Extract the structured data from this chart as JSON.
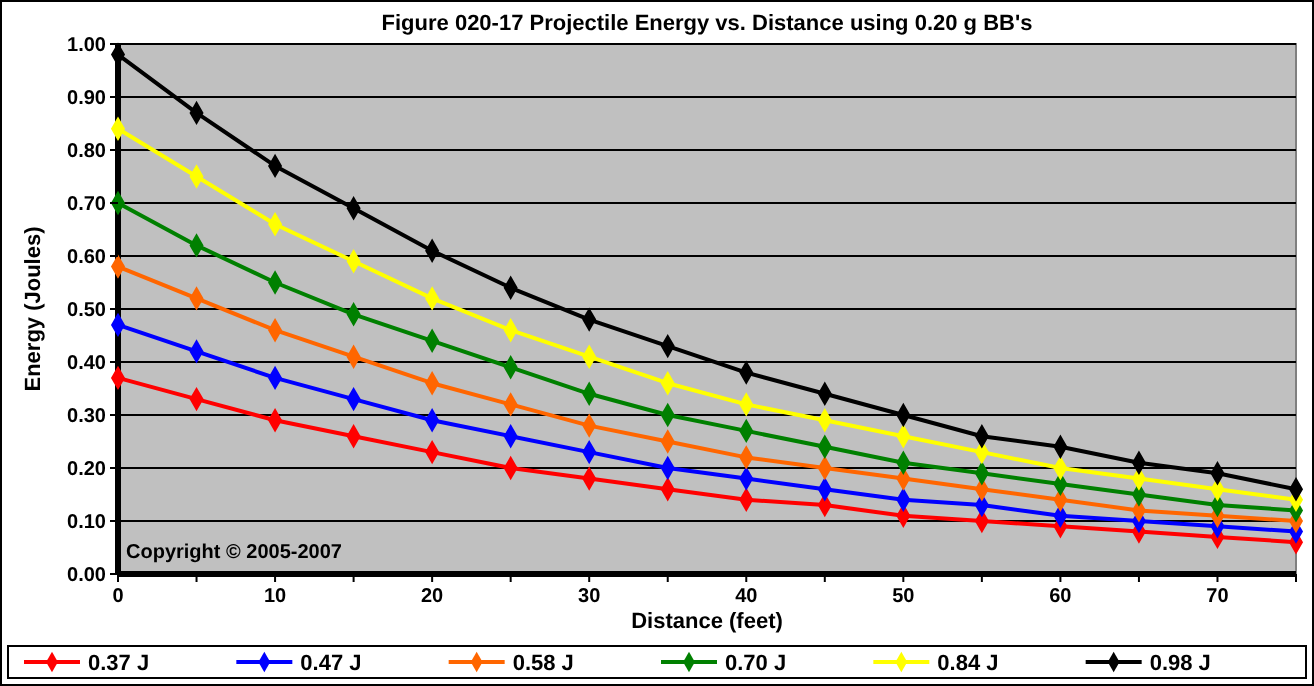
{
  "chart_data": {
    "type": "line",
    "title": "Figure 020-17  Projectile Energy vs. Distance using 0.20 g BB's",
    "xlabel": "Distance (feet)",
    "ylabel": "Energy (Joules)",
    "annotations": [
      "Copyright © 2005-2007"
    ],
    "x": [
      0,
      5,
      10,
      15,
      20,
      25,
      30,
      35,
      40,
      45,
      50,
      55,
      60,
      65,
      70,
      75
    ],
    "series": [
      {
        "name": "0.37 J",
        "color": "#ff0000",
        "values": [
          0.37,
          0.33,
          0.29,
          0.26,
          0.23,
          0.2,
          0.18,
          0.16,
          0.14,
          0.13,
          0.11,
          0.1,
          0.09,
          0.08,
          0.07,
          0.06
        ]
      },
      {
        "name": "0.47 J",
        "color": "#0000ff",
        "values": [
          0.47,
          0.42,
          0.37,
          0.33,
          0.29,
          0.26,
          0.23,
          0.2,
          0.18,
          0.16,
          0.14,
          0.13,
          0.11,
          0.1,
          0.09,
          0.08
        ]
      },
      {
        "name": "0.58 J",
        "color": "#ff6600",
        "values": [
          0.58,
          0.52,
          0.46,
          0.41,
          0.36,
          0.32,
          0.28,
          0.25,
          0.22,
          0.2,
          0.18,
          0.16,
          0.14,
          0.12,
          0.11,
          0.1
        ]
      },
      {
        "name": "0.70 J",
        "color": "#008000",
        "values": [
          0.7,
          0.62,
          0.55,
          0.49,
          0.44,
          0.39,
          0.34,
          0.3,
          0.27,
          0.24,
          0.21,
          0.19,
          0.17,
          0.15,
          0.13,
          0.12
        ]
      },
      {
        "name": "0.84 J",
        "color": "#ffff00",
        "values": [
          0.84,
          0.75,
          0.66,
          0.59,
          0.52,
          0.46,
          0.41,
          0.36,
          0.32,
          0.29,
          0.26,
          0.23,
          0.2,
          0.18,
          0.16,
          0.14
        ]
      },
      {
        "name": "0.98 J",
        "color": "#000000",
        "values": [
          0.98,
          0.87,
          0.77,
          0.69,
          0.61,
          0.54,
          0.48,
          0.43,
          0.38,
          0.34,
          0.3,
          0.26,
          0.24,
          0.21,
          0.19,
          0.16
        ]
      }
    ],
    "xlim": [
      0,
      75
    ],
    "xticks": [
      0,
      {
        "value": 5,
        "label": null
      },
      10,
      {
        "value": 15,
        "label": null
      },
      20,
      {
        "value": 25,
        "label": null
      },
      30,
      {
        "value": 35,
        "label": null
      },
      40,
      {
        "value": 45,
        "label": null
      },
      50,
      {
        "value": 55,
        "label": null
      },
      60,
      {
        "value": 65,
        "label": null
      },
      70,
      {
        "value": 75,
        "label": null
      }
    ],
    "ylim": [
      0,
      1
    ],
    "yticks": [
      {
        "value": 0,
        "label": "0.00"
      },
      {
        "value": 0.1,
        "label": "0.10"
      },
      {
        "value": 0.2,
        "label": "0.20"
      },
      {
        "value": 0.3,
        "label": "0.30"
      },
      {
        "value": 0.4,
        "label": "0.40"
      },
      {
        "value": 0.5,
        "label": "0.50"
      },
      {
        "value": 0.6,
        "label": "0.60"
      },
      {
        "value": 0.7,
        "label": "0.70"
      },
      {
        "value": 0.8,
        "label": "0.80"
      },
      {
        "value": 0.9,
        "label": "0.90"
      },
      {
        "value": 1,
        "label": "1.00"
      }
    ],
    "grid": "y",
    "legend": "bottom",
    "marker": "diamond",
    "line_style": "solid"
  }
}
